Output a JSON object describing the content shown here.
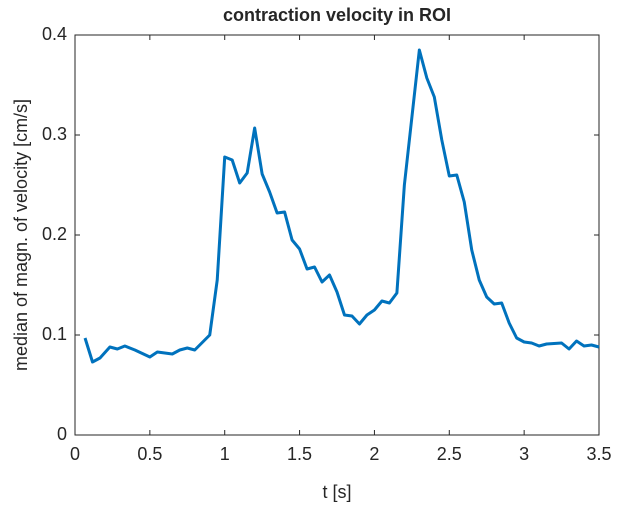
{
  "chart_data": {
    "type": "line",
    "title": "contraction velocity in ROI",
    "xlabel": "t [s]",
    "ylabel": "median of magn. of velocity [cm/s]",
    "x": [
      0.067,
      0.117,
      0.167,
      0.233,
      0.283,
      0.333,
      0.4,
      0.5,
      0.55,
      0.65,
      0.7,
      0.75,
      0.8,
      0.9,
      0.95,
      1.0,
      1.05,
      1.1,
      1.15,
      1.2,
      1.25,
      1.3,
      1.35,
      1.4,
      1.45,
      1.5,
      1.55,
      1.6,
      1.65,
      1.7,
      1.75,
      1.8,
      1.85,
      1.9,
      1.95,
      2.0,
      2.05,
      2.1,
      2.15,
      2.2,
      2.3,
      2.35,
      2.4,
      2.45,
      2.5,
      2.55,
      2.6,
      2.65,
      2.7,
      2.75,
      2.8,
      2.85,
      2.9,
      2.95,
      3.0,
      3.05,
      3.1,
      3.15,
      3.25,
      3.3,
      3.35,
      3.4,
      3.45,
      3.5
    ],
    "series": [
      {
        "name": "velocity",
        "color": "#0072bd",
        "values": [
          0.097,
          0.073,
          0.077,
          0.088,
          0.086,
          0.089,
          0.085,
          0.078,
          0.083,
          0.081,
          0.085,
          0.087,
          0.085,
          0.1,
          0.155,
          0.278,
          0.275,
          0.252,
          0.262,
          0.307,
          0.261,
          0.243,
          0.222,
          0.223,
          0.195,
          0.186,
          0.166,
          0.168,
          0.153,
          0.16,
          0.143,
          0.12,
          0.119,
          0.111,
          0.12,
          0.125,
          0.134,
          0.132,
          0.142,
          0.25,
          0.385,
          0.357,
          0.338,
          0.295,
          0.259,
          0.26,
          0.233,
          0.185,
          0.155,
          0.138,
          0.131,
          0.132,
          0.112,
          0.097,
          0.093,
          0.092,
          0.089,
          0.091,
          0.092,
          0.086,
          0.094,
          0.089,
          0.09,
          0.088
        ]
      }
    ],
    "xlim": [
      0,
      3.5
    ],
    "xticks": [
      0,
      0.5,
      1,
      1.5,
      2,
      2.5,
      3,
      3.5
    ],
    "ylim": [
      0,
      0.4
    ],
    "yticks": [
      0,
      0.1,
      0.2,
      0.3,
      0.4
    ],
    "grid": false
  }
}
